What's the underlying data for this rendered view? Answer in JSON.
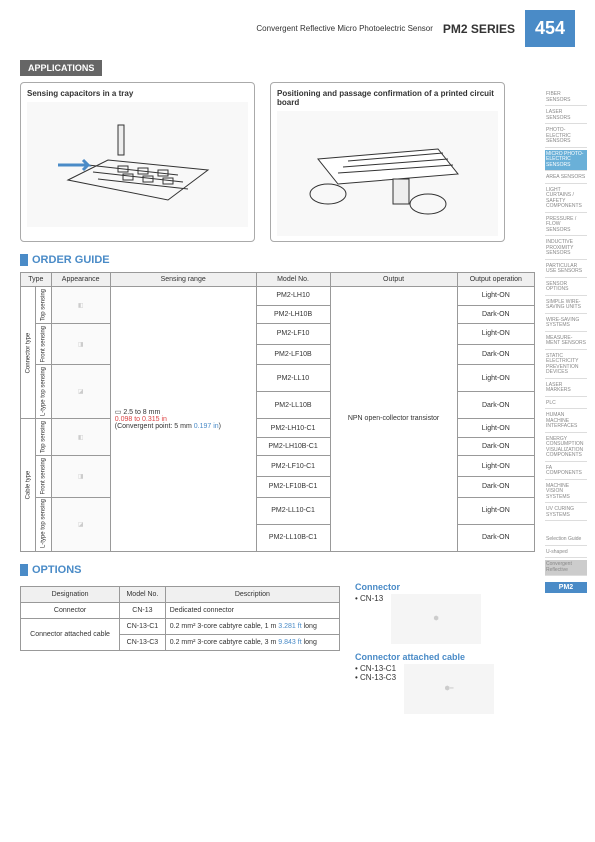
{
  "header": {
    "title": "Convergent Reflective Micro Photoelectric Sensor",
    "series": "PM2 SERIES",
    "page": "454"
  },
  "applications": {
    "header": "APPLICATIONS",
    "items": [
      {
        "title": "Sensing capacitors in a tray"
      },
      {
        "title": "Positioning and passage confirmation of a printed circuit board"
      }
    ]
  },
  "order_guide": {
    "title": "ORDER GUIDE",
    "columns": [
      "Type",
      "Appearance",
      "Sensing range",
      "Model No.",
      "Output",
      "Output operation"
    ],
    "type1": "Connector type",
    "type2": "Cable type",
    "subtypes": [
      "Top sensing",
      "Front sensing",
      "L-type top sensing",
      "Top sensing",
      "Front sensing",
      "L-type top sensing"
    ],
    "sensing_range_main": "2.5 to 8 mm",
    "sensing_range_sub": "0.098 to 0.315 in",
    "sensing_range_note": "(Convergent point: 5 mm ",
    "sensing_range_note2": "0.197 in",
    "sensing_range_note3": ")",
    "output": "NPN open-collector transistor",
    "rows": [
      {
        "model": "PM2-LH10",
        "op": "Light-ON"
      },
      {
        "model": "PM2-LH10B",
        "op": "Dark-ON"
      },
      {
        "model": "PM2-LF10",
        "op": "Light-ON"
      },
      {
        "model": "PM2-LF10B",
        "op": "Dark-ON"
      },
      {
        "model": "PM2-LL10",
        "op": "Light-ON"
      },
      {
        "model": "PM2-LL10B",
        "op": "Dark-ON"
      },
      {
        "model": "PM2-LH10-C1",
        "op": "Light-ON"
      },
      {
        "model": "PM2-LH10B-C1",
        "op": "Dark-ON"
      },
      {
        "model": "PM2-LF10-C1",
        "op": "Light-ON"
      },
      {
        "model": "PM2-LF10B-C1",
        "op": "Dark-ON"
      },
      {
        "model": "PM2-LL10-C1",
        "op": "Light-ON"
      },
      {
        "model": "PM2-LL10B-C1",
        "op": "Dark-ON"
      }
    ]
  },
  "options": {
    "title": "OPTIONS",
    "columns": [
      "Designation",
      "Model No.",
      "Description"
    ],
    "rows": [
      {
        "desig": "Connector",
        "model": "CN-13",
        "desc": "Dedicated connector"
      },
      {
        "desig": "Connector attached cable",
        "model": "CN-13-C1",
        "desc_pre": "0.2 mm² 3-core cabtyre cable, 1 m ",
        "desc_val": "3.281 ft",
        "desc_post": " long"
      },
      {
        "desig": "",
        "model": "CN-13-C3",
        "desc_pre": "0.2 mm² 3-core cabtyre cable, 3 m ",
        "desc_val": "9.843 ft",
        "desc_post": " long"
      }
    ],
    "connector_title": "Connector",
    "connector_item": "• CN-13",
    "cable_title": "Connector attached cable",
    "cable_item1": "• CN-13-C1",
    "cable_item2": "• CN-13-C3"
  },
  "sidebar": {
    "items": [
      "FIBER SENSORS",
      "LASER SENSORS",
      "PHOTO-ELECTRIC SENSORS",
      "MICRO PHOTO-ELECTRIC SENSORS",
      "AREA SENSORS",
      "LIGHT CURTAINS / SAFETY COMPONENTS",
      "PRESSURE / FLOW SENSORS",
      "INDUCTIVE PROXIMITY SENSORS",
      "PARTICULAR USE SENSORS",
      "SENSOR OPTIONS",
      "SIMPLE WIRE-SAVING UNITS",
      "WIRE-SAVING SYSTEMS",
      "MEASURE-MENT SENSORS",
      "STATIC ELECTRICITY PREVENTION DEVICES",
      "LASER MARKERS",
      "PLC",
      "HUMAN MACHINE INTERFACES",
      "ENERGY CONSUMPTION VISUALIZATION COMPONENTS",
      "FA COMPONENTS",
      "MACHINE VISION SYSTEMS",
      "UV CURING SYSTEMS"
    ],
    "active_index": 3,
    "sel": [
      "Selection Guide",
      "U-shaped",
      "Convergent Reflective"
    ],
    "badge": "PM2"
  }
}
